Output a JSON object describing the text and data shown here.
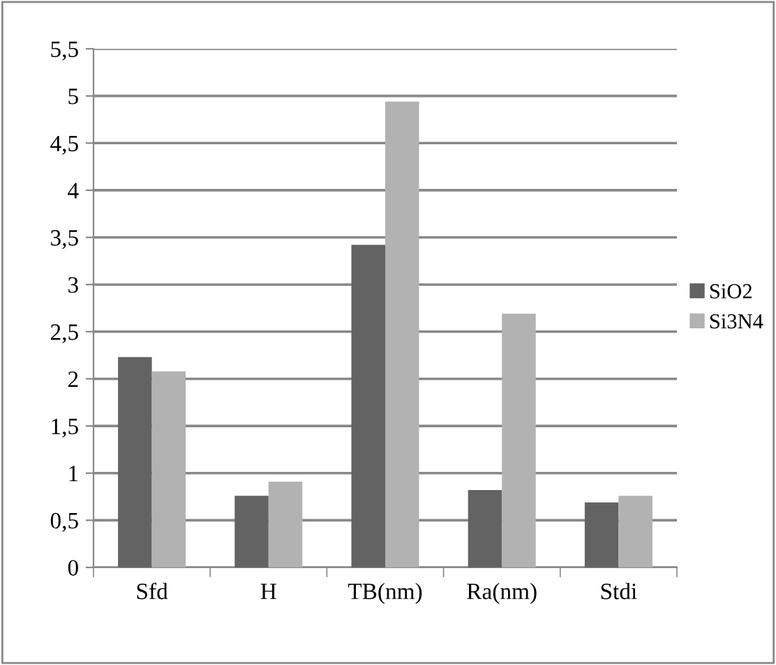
{
  "chart_data": {
    "type": "bar",
    "categories": [
      "Sfd",
      "H",
      "TB(nm)",
      "Ra(nm)",
      "Stdi"
    ],
    "series": [
      {
        "name": "SiO2",
        "color": "#636363",
        "values": [
          2.23,
          0.76,
          3.42,
          0.82,
          0.69
        ]
      },
      {
        "name": "Si3N4",
        "color": "#b2b2b2",
        "values": [
          2.08,
          0.91,
          4.94,
          2.69,
          0.76
        ]
      }
    ],
    "ylim": [
      0,
      5.5
    ],
    "yticks": [
      0,
      {
        "value": 0.5,
        "label": "0,5"
      },
      1,
      {
        "value": 1.5,
        "label": "1,5"
      },
      2,
      {
        "value": 2.5,
        "label": "2,5"
      },
      3,
      {
        "value": 3.5,
        "label": "3,5"
      },
      4,
      {
        "value": 4.5,
        "label": "4,5"
      },
      5,
      {
        "value": 5.5,
        "label": "5,5"
      }
    ],
    "grid": "y",
    "legend": "right"
  }
}
